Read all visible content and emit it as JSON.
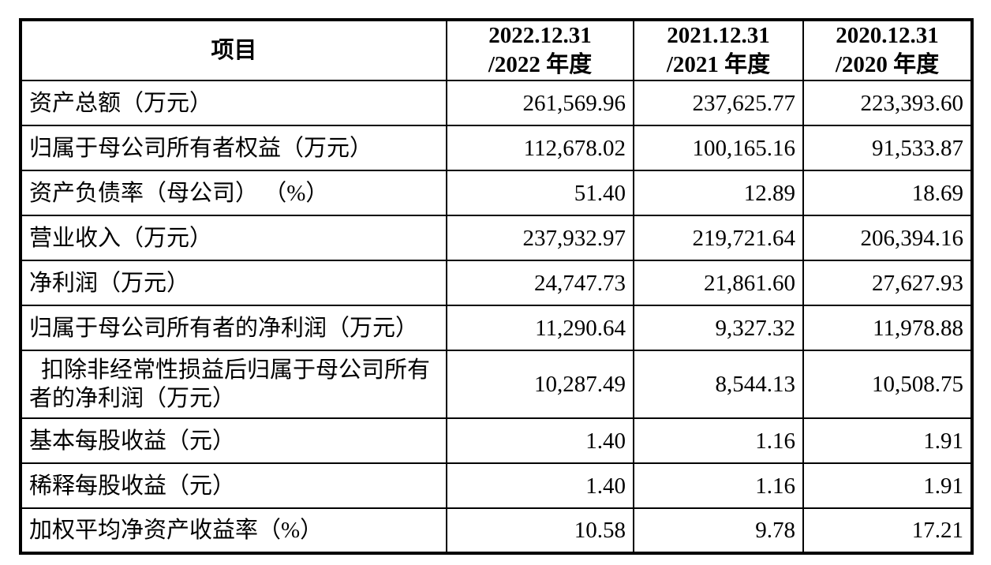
{
  "table": {
    "header": {
      "item_label": "项目",
      "periods": [
        {
          "line1": "2022.12.31",
          "line2": "/2022 年度"
        },
        {
          "line1": "2021.12.31",
          "line2": "/2021 年度"
        },
        {
          "line1": "2020.12.31",
          "line2": "/2020 年度"
        }
      ]
    },
    "rows": [
      {
        "label": "资产总额（万元）",
        "values": [
          "261,569.96",
          "237,625.77",
          "223,393.60"
        ]
      },
      {
        "label": "归属于母公司所有者权益（万元）",
        "values": [
          "112,678.02",
          "100,165.16",
          "91,533.87"
        ]
      },
      {
        "label": "资产负债率（母公司） （%）",
        "values": [
          "51.40",
          "12.89",
          "18.69"
        ]
      },
      {
        "label": "营业收入（万元）",
        "values": [
          "237,932.97",
          "219,721.64",
          "206,394.16"
        ]
      },
      {
        "label": "净利润（万元）",
        "values": [
          "24,747.73",
          "21,861.60",
          "27,627.93"
        ]
      },
      {
        "label": "归属于母公司所有者的净利润（万元）",
        "values": [
          "11,290.64",
          "9,327.32",
          "11,978.88"
        ]
      },
      {
        "label": "扣除非经常性损益后归属于母公司所有者的净利润（万元）",
        "values": [
          "10,287.49",
          "8,544.13",
          "10,508.75"
        ]
      },
      {
        "label": "基本每股收益（元）",
        "values": [
          "1.40",
          "1.16",
          "1.91"
        ]
      },
      {
        "label": "稀释每股收益（元）",
        "values": [
          "1.40",
          "1.16",
          "1.91"
        ]
      },
      {
        "label": "加权平均净资产收益率（%）",
        "values": [
          "10.58",
          "9.78",
          "17.21"
        ]
      }
    ],
    "colors": {
      "border": "#000000",
      "background": "#ffffff",
      "text": "#000000"
    }
  }
}
